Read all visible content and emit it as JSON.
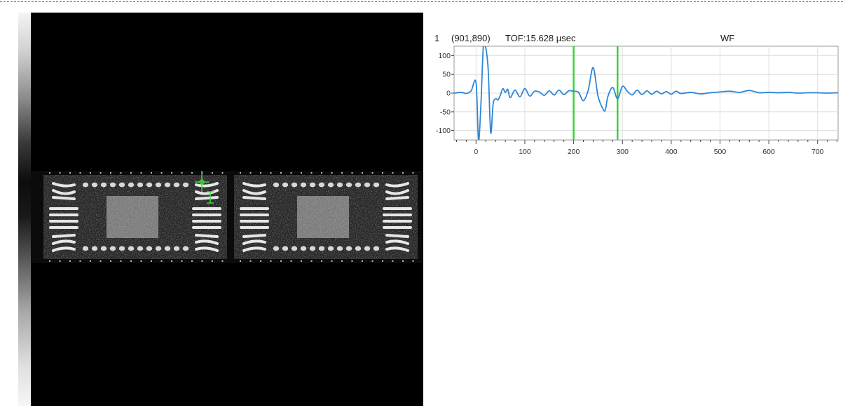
{
  "header": {
    "channel": "1",
    "position": "(901,890)",
    "tof": "TOF:15.628 µsec",
    "mode": "WF"
  },
  "chart_data": {
    "type": "line",
    "title": "",
    "xlabel": "",
    "ylabel": "",
    "xlim": [
      -45,
      742
    ],
    "ylim": [
      -125,
      125
    ],
    "xticks": [
      0,
      100,
      200,
      300,
      400,
      500,
      600,
      700
    ],
    "yticks": [
      100,
      50,
      0,
      -50,
      -100
    ],
    "grid": true,
    "gates": [
      200,
      290
    ],
    "line_color": "#2f86d6",
    "gate_color": "#35d635",
    "series": [
      {
        "x": [
          -45,
          -30,
          -20,
          -10,
          0,
          5,
          10,
          15,
          20,
          25,
          30,
          35,
          40,
          45,
          50,
          55,
          60,
          65,
          70,
          80,
          90,
          100,
          110,
          120,
          130,
          140,
          150,
          160,
          170,
          180,
          190,
          200,
          210,
          220,
          230,
          240,
          250,
          260,
          265,
          270,
          280,
          290,
          300,
          310,
          320,
          330,
          340,
          350,
          360,
          370,
          380,
          390,
          400,
          410,
          420,
          440,
          460,
          480,
          500,
          520,
          540,
          560,
          580,
          600,
          620,
          640,
          660,
          680,
          700,
          720,
          742
        ],
        "y": [
          0,
          2,
          -1,
          6,
          28,
          -125,
          -30,
          125,
          120,
          60,
          -105,
          -30,
          -15,
          -18,
          -5,
          12,
          2,
          10,
          -12,
          8,
          -10,
          12,
          -8,
          5,
          3,
          -6,
          6,
          -5,
          8,
          -4,
          6,
          5,
          2,
          -20,
          8,
          68,
          -8,
          -42,
          -45,
          -10,
          15,
          -15,
          18,
          5,
          -5,
          8,
          -4,
          6,
          -3,
          5,
          -2,
          4,
          -3,
          5,
          -1,
          2,
          -2,
          1,
          3,
          5,
          2,
          7,
          1,
          2,
          1,
          2,
          0,
          1,
          1,
          0,
          1
        ]
      }
    ]
  }
}
